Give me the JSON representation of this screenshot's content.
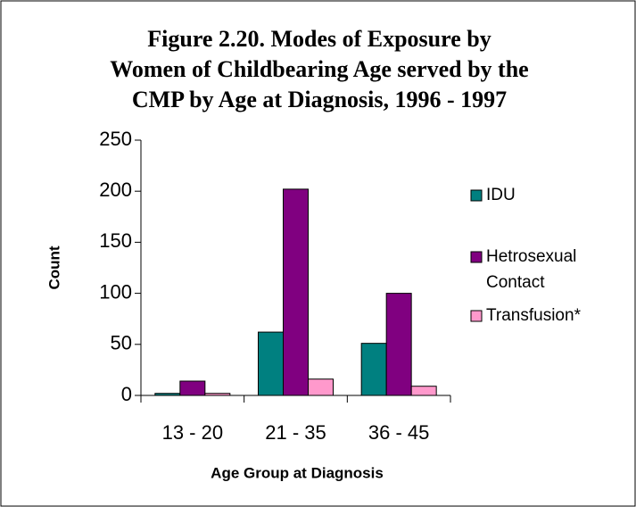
{
  "chart_data": {
    "type": "bar",
    "title": [
      "Figure 2.20. Modes of Exposure by",
      "Women of Childbearing Age served by the",
      "CMP by Age at Diagnosis, 1996 - 1997"
    ],
    "x_label": "Age Group at Diagnosis",
    "y_label": "Count",
    "categories": [
      "13 - 20",
      "21 - 35",
      "36 - 45"
    ],
    "series": [
      {
        "name": "IDU",
        "color": "#008080",
        "values": [
          2,
          62,
          51
        ]
      },
      {
        "name": "Hetrosexual Contact",
        "color": "#800080",
        "values": [
          14,
          202,
          100
        ]
      },
      {
        "name": "Transfusion*",
        "color": "#ff99cc",
        "values": [
          2,
          16,
          9
        ]
      }
    ],
    "ylim": [
      0,
      250
    ],
    "yticks": [
      0,
      50,
      100,
      150,
      200,
      250
    ],
    "legend": "right"
  }
}
